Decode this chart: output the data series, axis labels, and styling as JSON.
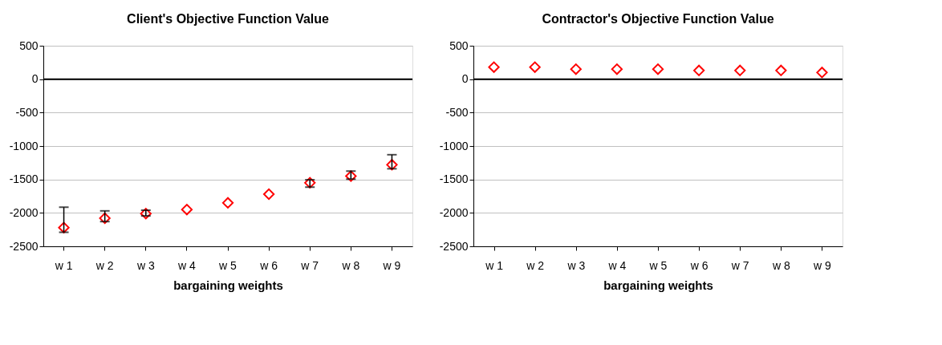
{
  "chart_data": [
    {
      "type": "scatter",
      "title": "Client's Objective Function Value",
      "xlabel": "bargaining weights",
      "categories": [
        "w 1",
        "w 2",
        "w 3",
        "w 4",
        "w 5",
        "w 6",
        "w 7",
        "w 8",
        "w 9"
      ],
      "series": [
        {
          "color": "#ff0000",
          "values": [
            -2220,
            -2080,
            -2010,
            -1950,
            -1850,
            -1720,
            -1550,
            -1450,
            -1280
          ],
          "errors": [
            [
              -2290,
              -1915
            ],
            [
              -2130,
              -1970
            ],
            [
              -2045,
              -1960
            ],
            null,
            null,
            null,
            [
              -1615,
              -1505
            ],
            [
              -1495,
              -1375
            ],
            [
              -1340,
              -1130
            ]
          ]
        }
      ],
      "marker": "diamond",
      "ylim": [
        -2500,
        500
      ],
      "yticks": [
        -2500,
        -2000,
        -1500,
        -1000,
        -500,
        0,
        500
      ],
      "grid": "y",
      "ref_lines": [
        {
          "axis": "y",
          "value": 0,
          "color": "#000000"
        }
      ]
    },
    {
      "type": "scatter",
      "title": "Contractor's Objective Function Value",
      "xlabel": "bargaining weights",
      "categories": [
        "w 1",
        "w 2",
        "w 3",
        "w 4",
        "w 5",
        "w 6",
        "w 7",
        "w 8",
        "w 9"
      ],
      "series": [
        {
          "color": "#ff0000",
          "values": [
            180,
            180,
            150,
            150,
            150,
            130,
            130,
            130,
            100
          ]
        }
      ],
      "marker": "diamond",
      "ylim": [
        -2500,
        500
      ],
      "yticks": [
        -2500,
        -2000,
        -1500,
        -1000,
        -500,
        0,
        500
      ],
      "grid": "y",
      "ref_lines": [
        {
          "axis": "y",
          "value": 0,
          "color": "#000000"
        }
      ]
    }
  ]
}
